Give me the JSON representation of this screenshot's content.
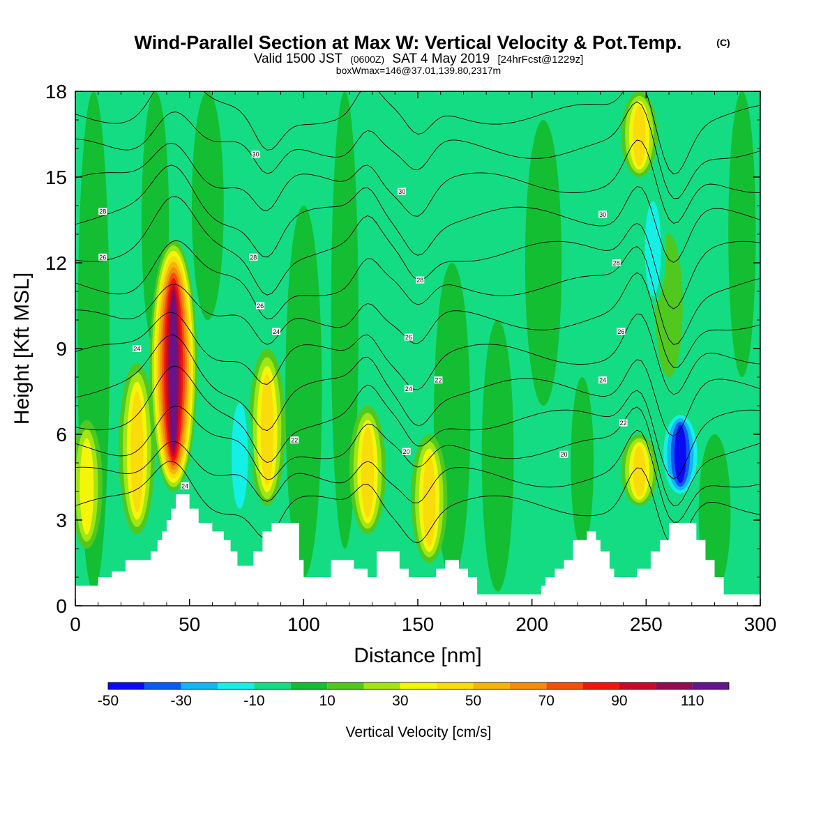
{
  "chart_data": {
    "type": "heatmap",
    "title": "Wind-Parallel Section at Max W: Vertical Velocity & Pot.Temp.",
    "title_mark": "(C)",
    "subtitle": {
      "part1": "Valid 1500 JST",
      "part2": "(0600Z)",
      "part3": "SAT 4 May 2019",
      "part4": "[24hrFcst@1229z]"
    },
    "subtitle2": "boxWmax=146@37.01,139.80,2317m",
    "xlabel": "Distance [nm]",
    "ylabel": "Height [Kft MSL]",
    "xlim": [
      0,
      300
    ],
    "ylim": [
      0,
      18
    ],
    "x_ticks": [
      0,
      50,
      100,
      150,
      200,
      250,
      300
    ],
    "y_ticks": [
      0,
      3,
      6,
      9,
      12,
      15,
      18
    ],
    "colorbar": {
      "label": "Vertical Velocity [cm/s]",
      "levels": [
        -50,
        -40,
        -30,
        -20,
        -10,
        0,
        10,
        20,
        30,
        40,
        50,
        60,
        70,
        80,
        90,
        100,
        110,
        120
      ],
      "tick_labels": [
        "-50",
        "-30",
        "-10",
        "10",
        "30",
        "50",
        "70",
        "90",
        "110"
      ],
      "tick_values": [
        -50,
        -30,
        -10,
        10,
        30,
        50,
        70,
        90,
        110
      ],
      "colors": [
        "#0a0af5",
        "#0a5af5",
        "#14b4f5",
        "#14f0e6",
        "#14dc82",
        "#14be32",
        "#50c81e",
        "#a0e614",
        "#f5f50a",
        "#fadc0a",
        "#f5b40a",
        "#f58c0a",
        "#f5500a",
        "#f5140a",
        "#c80a28",
        "#960a50",
        "#64148c"
      ]
    },
    "updrafts": [
      {
        "x": 5,
        "z_low": 2.0,
        "z_high": 6.5,
        "w": 30
      },
      {
        "x": 27,
        "z_low": 2.5,
        "z_high": 8.5,
        "w": 40
      },
      {
        "x": 43,
        "z_low": 4.0,
        "z_high": 12.8,
        "w": 110
      },
      {
        "x": 84,
        "z_low": 3.5,
        "z_high": 9.0,
        "w": 40
      },
      {
        "x": 128,
        "z_low": 2.5,
        "z_high": 7.0,
        "w": 40
      },
      {
        "x": 155,
        "z_low": 1.5,
        "z_high": 6.0,
        "w": 40
      },
      {
        "x": 247,
        "z_low": 3.5,
        "z_high": 6.0,
        "w": 40
      },
      {
        "x": 247,
        "z_low": 15.0,
        "z_high": 18.0,
        "w": 40
      }
    ],
    "downdrafts": [
      {
        "x": 72,
        "z_low": 3.0,
        "z_high": 7.5,
        "w": -20
      },
      {
        "x": 253,
        "z_low": 10.5,
        "z_high": 14.5,
        "w": -20
      },
      {
        "x": 265,
        "z_low": 3.8,
        "z_high": 6.8,
        "w": -50
      }
    ],
    "terrain_kft": [
      [
        0,
        0.7
      ],
      [
        10,
        1.0
      ],
      [
        16,
        1.2
      ],
      [
        22,
        1.6
      ],
      [
        30,
        1.6
      ],
      [
        33,
        1.9
      ],
      [
        36,
        2.3
      ],
      [
        38,
        2.6
      ],
      [
        40,
        3.0
      ],
      [
        42,
        3.4
      ],
      [
        44,
        3.9
      ],
      [
        48,
        3.9
      ],
      [
        50,
        3.4
      ],
      [
        54,
        2.9
      ],
      [
        60,
        2.6
      ],
      [
        65,
        2.3
      ],
      [
        68,
        1.9
      ],
      [
        71,
        1.4
      ],
      [
        74,
        1.4
      ],
      [
        78,
        1.9
      ],
      [
        82,
        2.6
      ],
      [
        86,
        2.9
      ],
      [
        94,
        2.9
      ],
      [
        98,
        1.6
      ],
      [
        100,
        1.0
      ],
      [
        106,
        1.0
      ],
      [
        112,
        1.6
      ],
      [
        118,
        1.6
      ],
      [
        122,
        1.3
      ],
      [
        128,
        1.0
      ],
      [
        132,
        1.9
      ],
      [
        137,
        1.9
      ],
      [
        142,
        1.3
      ],
      [
        146,
        1.0
      ],
      [
        150,
        1.0
      ],
      [
        154,
        1.0
      ],
      [
        158,
        1.3
      ],
      [
        162,
        1.6
      ],
      [
        168,
        1.3
      ],
      [
        172,
        1.0
      ],
      [
        176,
        0.4
      ],
      [
        200,
        0.4
      ],
      [
        204,
        0.7
      ],
      [
        206,
        1.0
      ],
      [
        210,
        1.3
      ],
      [
        214,
        1.6
      ],
      [
        218,
        2.3
      ],
      [
        224,
        2.6
      ],
      [
        228,
        2.3
      ],
      [
        230,
        1.9
      ],
      [
        234,
        1.3
      ],
      [
        236,
        1.0
      ],
      [
        244,
        1.0
      ],
      [
        246,
        1.3
      ],
      [
        252,
        1.9
      ],
      [
        256,
        2.3
      ],
      [
        260,
        2.9
      ],
      [
        268,
        2.9
      ],
      [
        272,
        2.3
      ],
      [
        276,
        1.6
      ],
      [
        280,
        1.0
      ],
      [
        284,
        0.4
      ],
      [
        300,
        0.4
      ]
    ],
    "theta_contour_labels": [
      {
        "x": 12,
        "y": 13.8,
        "text": "28"
      },
      {
        "x": 12,
        "y": 12.2,
        "text": "26"
      },
      {
        "x": 27,
        "y": 9.0,
        "text": "24"
      },
      {
        "x": 48,
        "y": 4.2,
        "text": "24"
      },
      {
        "x": 79,
        "y": 15.8,
        "text": "30"
      },
      {
        "x": 78,
        "y": 12.2,
        "text": "28"
      },
      {
        "x": 81,
        "y": 10.5,
        "text": "26"
      },
      {
        "x": 88,
        "y": 9.6,
        "text": "24"
      },
      {
        "x": 96,
        "y": 5.8,
        "text": "22"
      },
      {
        "x": 143,
        "y": 14.5,
        "text": "30"
      },
      {
        "x": 151,
        "y": 11.4,
        "text": "28"
      },
      {
        "x": 146,
        "y": 9.4,
        "text": "26"
      },
      {
        "x": 146,
        "y": 7.6,
        "text": "24"
      },
      {
        "x": 159,
        "y": 7.9,
        "text": "22"
      },
      {
        "x": 145,
        "y": 5.4,
        "text": "20"
      },
      {
        "x": 231,
        "y": 13.7,
        "text": "30"
      },
      {
        "x": 237,
        "y": 12.0,
        "text": "28"
      },
      {
        "x": 239,
        "y": 9.6,
        "text": "26"
      },
      {
        "x": 231,
        "y": 7.9,
        "text": "24"
      },
      {
        "x": 240,
        "y": 6.4,
        "text": "22"
      },
      {
        "x": 214,
        "y": 5.3,
        "text": "20"
      }
    ]
  }
}
